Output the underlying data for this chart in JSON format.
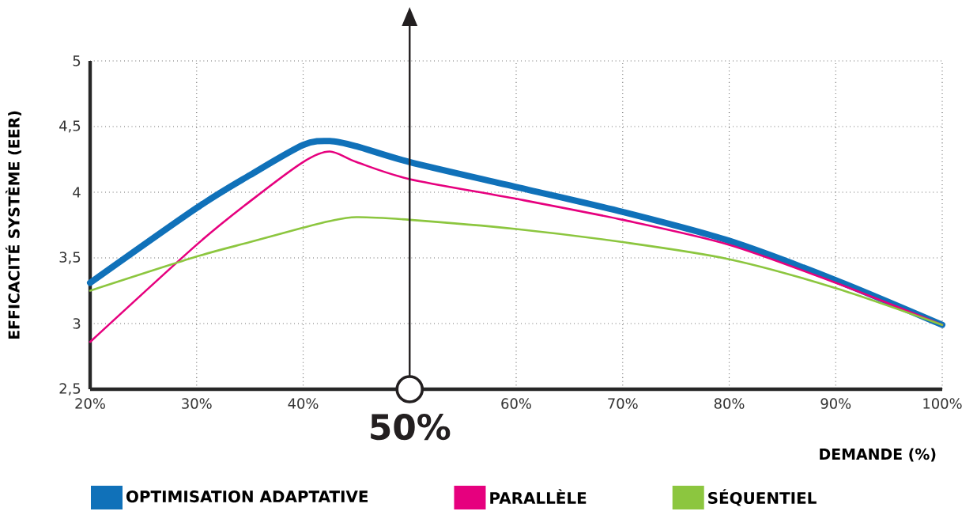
{
  "chart_data": {
    "type": "line",
    "xlabel": "DEMANDE (%)",
    "ylabel": "EFFICACITÉ SYSTÈME (EER)",
    "x": [
      20,
      30,
      35,
      40,
      42.5,
      45,
      50,
      60,
      70,
      80,
      90,
      100
    ],
    "series": [
      {
        "name": "OPTIMISATION ADAPTATIVE",
        "color": "#1071b9",
        "values": [
          3.31,
          3.88,
          4.13,
          4.36,
          4.39,
          4.35,
          4.23,
          4.04,
          3.85,
          3.63,
          3.33,
          2.99
        ]
      },
      {
        "name": "PARALLÈLE",
        "color": "#e6007e",
        "values": [
          2.86,
          3.6,
          3.93,
          4.23,
          4.31,
          4.23,
          4.1,
          3.95,
          3.79,
          3.6,
          3.31,
          2.99
        ]
      },
      {
        "name": "SÉQUENTIEL",
        "color": "#8cc63f",
        "values": [
          3.25,
          3.51,
          3.62,
          3.73,
          3.78,
          3.81,
          3.79,
          3.72,
          3.62,
          3.49,
          3.27,
          2.99
        ]
      }
    ],
    "xlim": [
      20,
      100
    ],
    "ylim": [
      2.5,
      5
    ],
    "xticks": [
      {
        "value": 20,
        "label": "20%"
      },
      {
        "value": 30,
        "label": "30%"
      },
      {
        "value": 40,
        "label": "40%"
      },
      {
        "value": 50,
        "label": null
      },
      {
        "value": 60,
        "label": "60%"
      },
      {
        "value": 70,
        "label": "70%"
      },
      {
        "value": 80,
        "label": "80%"
      },
      {
        "value": 90,
        "label": "90%"
      },
      {
        "value": 100,
        "label": "100%"
      }
    ],
    "yticks": [
      {
        "value": 2.5,
        "label": "2,5"
      },
      3,
      {
        "value": 3.5,
        "label": "3,5"
      },
      4,
      {
        "value": 4.5,
        "label": "4,5"
      },
      5
    ],
    "ref_lines": [
      {
        "axis": "x",
        "value": 50,
        "label": "50%",
        "color": "#231f20"
      }
    ],
    "grid": true,
    "legend": "bottom",
    "marker": "none",
    "line_style": "solid"
  }
}
